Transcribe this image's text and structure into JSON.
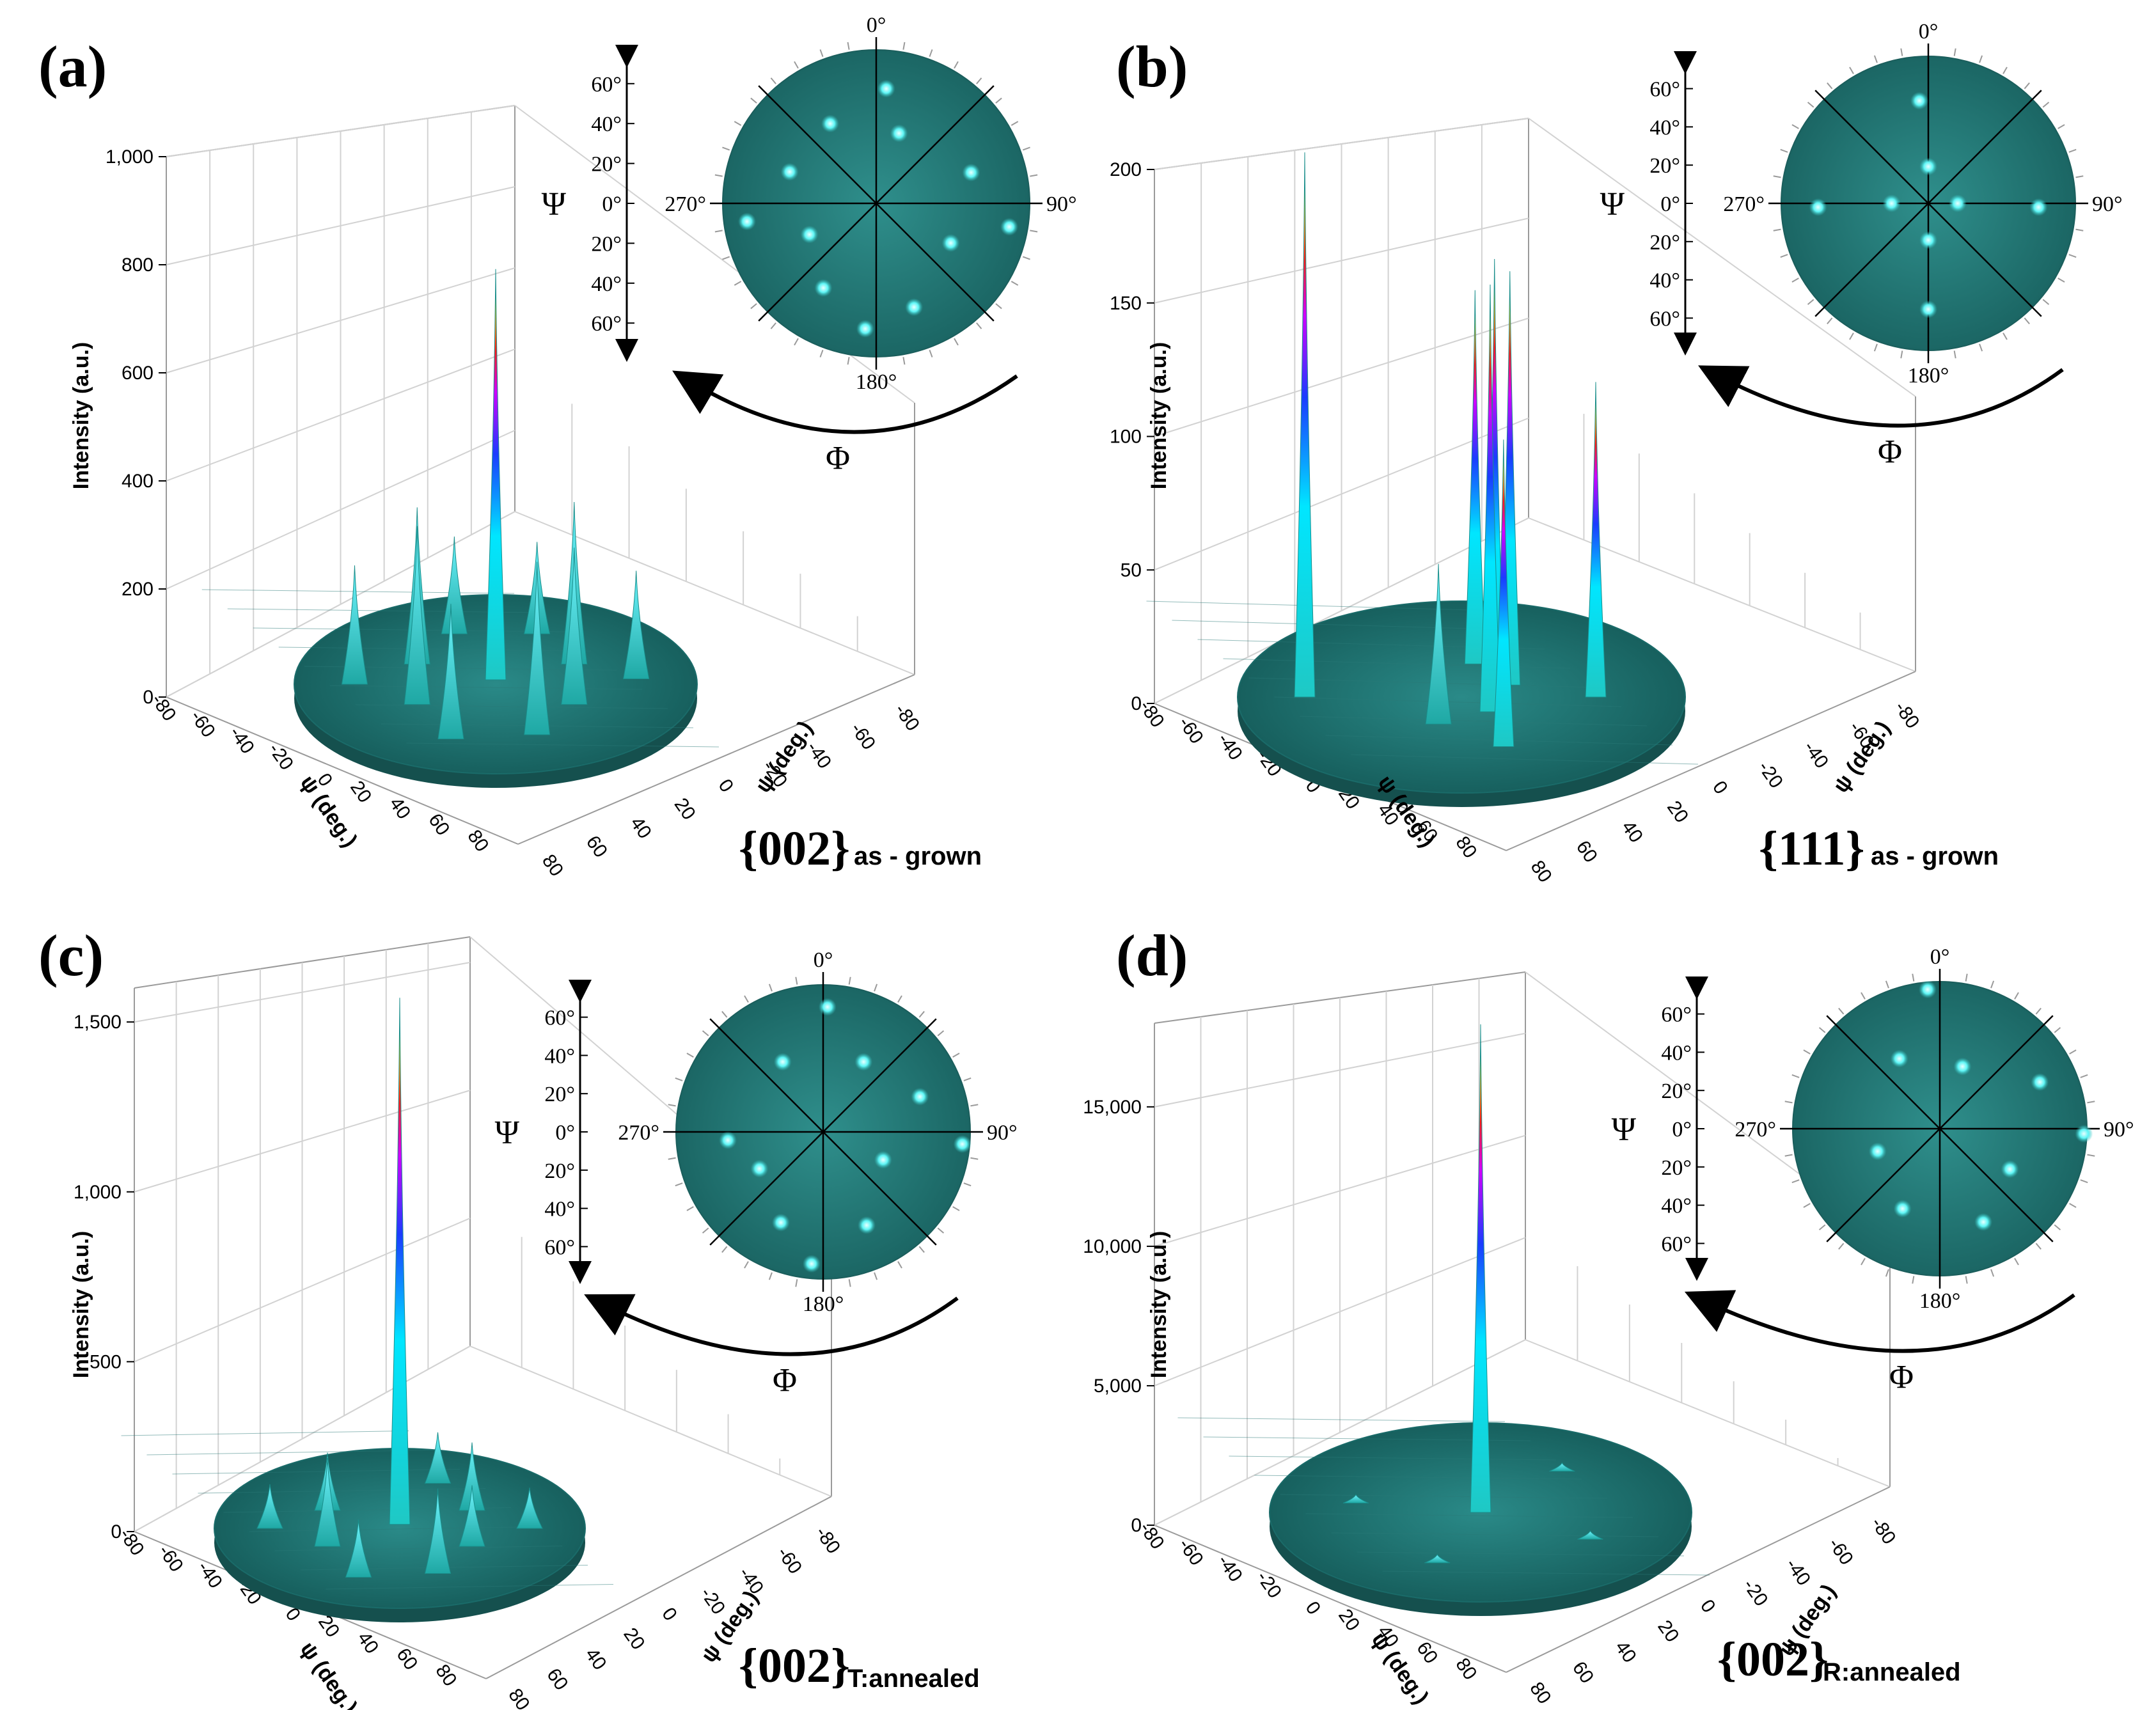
{
  "chart_data": [
    {
      "panel": "(a)",
      "type": "surface3d",
      "plane": "{002}",
      "condition": "as - grown",
      "zlabel": "Intensity (a.u.)",
      "xlabel": "ψ (deg.)",
      "ylabel": "ψ (deg.)",
      "zlim": [
        0,
        1000
      ],
      "zticks": [
        "0",
        "200",
        "400",
        "600",
        "800",
        "1,000"
      ],
      "xticks": [
        "-80",
        "-60",
        "-40",
        "-20",
        "0",
        "20",
        "40",
        "60",
        "80"
      ],
      "yticks": [
        "80",
        "60",
        "40",
        "20",
        "0",
        "-20",
        "-40",
        "-60",
        "-80"
      ],
      "peaks": [
        {
          "psi": 5,
          "phi": 0,
          "intensity": 760
        },
        {
          "psi": 60,
          "phi": 20,
          "intensity": 170
        },
        {
          "psi": 45,
          "phi": 60,
          "intensity": 300
        },
        {
          "psi": 70,
          "phi": 85,
          "intensity": 200
        },
        {
          "psi": 45,
          "phi": 120,
          "intensity": 290
        },
        {
          "psi": 60,
          "phi": 160,
          "intensity": 320
        },
        {
          "psi": 65,
          "phi": 200,
          "intensity": 250
        },
        {
          "psi": 45,
          "phi": 240,
          "intensity": 330
        },
        {
          "psi": 70,
          "phi": 270,
          "intensity": 220
        },
        {
          "psi": 45,
          "phi": 300,
          "intensity": 290
        },
        {
          "psi": 60,
          "phi": 340,
          "intensity": 180
        }
      ],
      "pole_figure": {
        "psi_axis": "Ψ",
        "phi_axis": "Φ",
        "psi_ticks": [
          "60°",
          "40°",
          "20°",
          "0°",
          "20°",
          "40°",
          "60°"
        ],
        "phi_labels": [
          "0°",
          "90°",
          "180°",
          "270°"
        ],
        "spots": [
          {
            "psi": 75,
            "phi": 5
          },
          {
            "psi": 48,
            "phi": 18
          },
          {
            "psi": 65,
            "phi": 72
          },
          {
            "psi": 88,
            "phi": 100
          },
          {
            "psi": 55,
            "phi": 118
          },
          {
            "psi": 72,
            "phi": 160
          },
          {
            "psi": 82,
            "phi": 185
          },
          {
            "psi": 65,
            "phi": 212
          },
          {
            "psi": 48,
            "phi": 245
          },
          {
            "psi": 85,
            "phi": 262
          },
          {
            "psi": 60,
            "phi": 290
          },
          {
            "psi": 60,
            "phi": 330
          }
        ]
      }
    },
    {
      "panel": "(b)",
      "type": "surface3d",
      "plane": "{111}",
      "condition": "as - grown",
      "zlabel": "Intensity (a.u.)",
      "xlabel": "ψ (deg.)",
      "ylabel": "ψ (deg.)",
      "zlim": [
        0,
        200
      ],
      "zticks": [
        "0",
        "50",
        "100",
        "150",
        "200"
      ],
      "xticks": [
        "-80",
        "-60",
        "-40",
        "-20",
        "0",
        "20",
        "40",
        "60",
        "80"
      ],
      "yticks": [
        "80",
        "60",
        "40",
        "20",
        "0",
        "-20",
        "-40",
        "-60",
        "-80"
      ],
      "peaks": [
        {
          "psi": 70,
          "phi": 270,
          "intensity": 205
        },
        {
          "psi": 35,
          "phi": 10,
          "intensity": 140
        },
        {
          "psi": 25,
          "phi": 60,
          "intensity": 155
        },
        {
          "psi": 15,
          "phi": 100,
          "intensity": 165
        },
        {
          "psi": 20,
          "phi": 140,
          "intensity": 160
        },
        {
          "psi": 55,
          "phi": 160,
          "intensity": 115
        },
        {
          "psi": 60,
          "phi": 90,
          "intensity": 118
        },
        {
          "psi": 30,
          "phi": 200,
          "intensity": 60
        }
      ],
      "pole_figure": {
        "psi_axis": "Ψ",
        "phi_axis": "Φ",
        "psi_ticks": [
          "60°",
          "40°",
          "20°",
          "0°",
          "20°",
          "40°",
          "60°"
        ],
        "phi_labels": [
          "0°",
          "90°",
          "180°",
          "270°"
        ],
        "spots": [
          {
            "psi": 70,
            "phi": 355
          },
          {
            "psi": 25,
            "phi": 0
          },
          {
            "psi": 20,
            "phi": 90
          },
          {
            "psi": 75,
            "phi": 92
          },
          {
            "psi": 25,
            "phi": 180
          },
          {
            "psi": 72,
            "phi": 180
          },
          {
            "psi": 25,
            "phi": 270
          },
          {
            "psi": 75,
            "phi": 268
          }
        ]
      }
    },
    {
      "panel": "(c)",
      "type": "surface3d",
      "plane": "{002}",
      "condition": "T:annealed",
      "zlabel": "Intensity (a.u.)",
      "xlabel": "ψ (deg.)",
      "ylabel": "ψ (deg.)",
      "zlim": [
        0,
        1600
      ],
      "zticks": [
        "0",
        "500",
        "1,000",
        "1,500"
      ],
      "xticks": [
        "-80",
        "-60",
        "-40",
        "-20",
        "0",
        "20",
        "40",
        "60",
        "80"
      ],
      "yticks": [
        "80",
        "60",
        "40",
        "20",
        "0",
        "-20",
        "-40",
        "-60",
        "-80"
      ],
      "peaks": [
        {
          "psi": 5,
          "phi": 0,
          "intensity": 1550
        },
        {
          "psi": 60,
          "phi": 20,
          "intensity": 150
        },
        {
          "psi": 45,
          "phi": 60,
          "intensity": 200
        },
        {
          "psi": 70,
          "phi": 90,
          "intensity": 120
        },
        {
          "psi": 45,
          "phi": 120,
          "intensity": 180
        },
        {
          "psi": 60,
          "phi": 160,
          "intensity": 250
        },
        {
          "psi": 65,
          "phi": 200,
          "intensity": 170
        },
        {
          "psi": 45,
          "phi": 240,
          "intensity": 260
        },
        {
          "psi": 70,
          "phi": 270,
          "intensity": 130
        },
        {
          "psi": 45,
          "phi": 300,
          "intensity": 170
        }
      ],
      "pole_figure": {
        "psi_axis": "Ψ",
        "phi_axis": "Φ",
        "psi_ticks": [
          "60°",
          "40°",
          "20°",
          "0°",
          "20°",
          "40°",
          "60°"
        ],
        "phi_labels": [
          "0°",
          "90°",
          "180°",
          "270°"
        ],
        "spots": [
          {
            "psi": 85,
            "phi": 2
          },
          {
            "psi": 55,
            "phi": 30
          },
          {
            "psi": 70,
            "phi": 70
          },
          {
            "psi": 95,
            "phi": 95
          },
          {
            "psi": 45,
            "phi": 115
          },
          {
            "psi": 70,
            "phi": 155
          },
          {
            "psi": 90,
            "phi": 185
          },
          {
            "psi": 68,
            "phi": 205
          },
          {
            "psi": 50,
            "phi": 240
          },
          {
            "psi": 65,
            "phi": 265
          },
          {
            "psi": 55,
            "phi": 330
          }
        ]
      }
    },
    {
      "panel": "(d)",
      "type": "surface3d",
      "plane": "{002}",
      "condition": "R:annealed",
      "zlabel": "Intensity (a.u.)",
      "xlabel": "ψ (deg.)",
      "ylabel": "ψ (deg.)",
      "zlim": [
        0,
        18000
      ],
      "zticks": [
        "0",
        "5,000",
        "10,000",
        "15,000"
      ],
      "xticks": [
        "-80",
        "-60",
        "-40",
        "-20",
        "0",
        "20",
        "40",
        "60",
        "80"
      ],
      "yticks": [
        "80",
        "60",
        "40",
        "20",
        "0",
        "-20",
        "-40",
        "-60",
        "-80"
      ],
      "peaks": [
        {
          "psi": 0,
          "phi": 0,
          "intensity": 17500
        },
        {
          "psi": 60,
          "phi": 40,
          "intensity": 300
        },
        {
          "psi": 60,
          "phi": 120,
          "intensity": 300
        },
        {
          "psi": 60,
          "phi": 200,
          "intensity": 300
        },
        {
          "psi": 60,
          "phi": 280,
          "intensity": 300
        }
      ],
      "pole_figure": {
        "psi_axis": "Ψ",
        "phi_axis": "Φ",
        "psi_ticks": [
          "60°",
          "40°",
          "20°",
          "0°",
          "20°",
          "40°",
          "60°"
        ],
        "phi_labels": [
          "0°",
          "90°",
          "180°",
          "270°"
        ],
        "spots": [
          {
            "psi": 95,
            "phi": 355
          },
          {
            "psi": 45,
            "phi": 20
          },
          {
            "psi": 75,
            "phi": 65
          },
          {
            "psi": 98,
            "phi": 92
          },
          {
            "psi": 55,
            "phi": 120
          },
          {
            "psi": 70,
            "phi": 155
          },
          {
            "psi": 60,
            "phi": 205
          },
          {
            "psi": 45,
            "phi": 250
          },
          {
            "psi": 55,
            "phi": 330
          }
        ]
      }
    }
  ]
}
